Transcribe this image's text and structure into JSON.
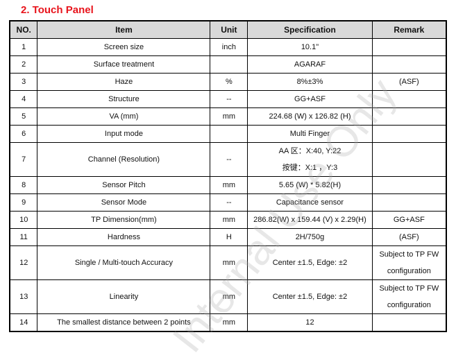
{
  "title": "2.   Touch Panel",
  "headers": [
    "NO.",
    "Item",
    "Unit",
    "Specification",
    "Remark"
  ],
  "rows": [
    {
      "no": "1",
      "item": "Screen size",
      "unit": "inch",
      "spec": "10.1\"",
      "remark": ""
    },
    {
      "no": "2",
      "item": "Surface treatment",
      "unit": "",
      "spec": "AGARAF",
      "remark": ""
    },
    {
      "no": "3",
      "item": "Haze",
      "unit": "%",
      "spec": "8%±3%",
      "remark": "(ASF)"
    },
    {
      "no": "4",
      "item": "Structure",
      "unit": "--",
      "spec": "GG+ASF",
      "remark": ""
    },
    {
      "no": "5",
      "item": "VA (mm)",
      "unit": "mm",
      "spec": "224.68 (W) x 126.82 (H)",
      "remark": ""
    },
    {
      "no": "6",
      "item": "Input mode",
      "unit": "",
      "spec": "Multi Finger",
      "remark": ""
    },
    {
      "no": "7",
      "item": "Channel (Resolution)",
      "unit": "--",
      "spec": "AA 区：X:40,    Y:22",
      "spec2": "按键：X:1  ，Y:3",
      "remark": ""
    },
    {
      "no": "8",
      "item": "Sensor Pitch",
      "unit": "mm",
      "spec": "5.65 (W) * 5.82(H)",
      "remark": ""
    },
    {
      "no": "9",
      "item": "Sensor Mode",
      "unit": "--",
      "spec": "Capacitance sensor",
      "remark": ""
    },
    {
      "no": "10",
      "item": "TP Dimension(mm)",
      "unit": "mm",
      "spec": "286.82(W) x 159.44 (V) x 2.29(H)",
      "remark": "GG+ASF"
    },
    {
      "no": "11",
      "item": "Hardness",
      "unit": "H",
      "spec": "2H/750g",
      "remark": "(ASF)"
    },
    {
      "no": "12",
      "item": "Single / Multi-touch Accuracy",
      "unit": "mm",
      "spec": "Center  ±1.5, Edge:  ±2",
      "remark": "Subject to TP FW",
      "remark2": "configuration"
    },
    {
      "no": "13",
      "item": "Linearity",
      "unit": "mm",
      "spec": "Center  ±1.5, Edge:  ±2",
      "remark": "Subject to TP FW",
      "remark2": "configuration"
    },
    {
      "no": "14",
      "item": "The smallest distance between 2 points",
      "unit": "mm",
      "spec": "12",
      "remark": ""
    }
  ],
  "watermark": "Internal Use Only",
  "colors": {
    "title": "#e8141c",
    "header_bg": "#d9d9d9"
  }
}
